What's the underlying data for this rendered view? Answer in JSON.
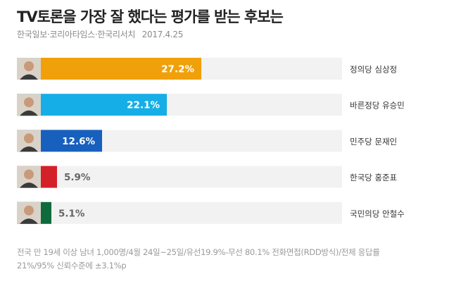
{
  "header": {
    "title": "TV토론을 가장 잘 했다는 평가를 받는 후보는",
    "source": "한국일보·코리아타임스·한국리서치",
    "date": "2017.4.25"
  },
  "chart_data": {
    "type": "bar",
    "orientation": "horizontal",
    "categories": [
      "정의당 심상정",
      "바른정당 유승민",
      "민주당 문재인",
      "한국당 홍준표",
      "국민의당 안철수"
    ],
    "values": [
      27.2,
      22.1,
      12.6,
      5.9,
      5.1
    ],
    "value_labels": [
      "27.2%",
      "22.1%",
      "12.6%",
      "5.9%",
      "5.1%"
    ],
    "colors": [
      "#f0a00a",
      "#16aee6",
      "#1760bd",
      "#d42029",
      "#0f6b3e"
    ],
    "track_color": "#f2f2f2",
    "xlim": [
      0,
      48
    ],
    "label_position": "right",
    "grid": false,
    "legend": "none"
  },
  "footnote": {
    "line1": "전국 만 19세 이상 남녀 1,000명/4월 24일~25일/유선19.9%-무선 80.1% 전화면접(RDD방식)/전체 응답률",
    "line2": "21%/95% 신뢰수준에 ±3.1%p"
  }
}
